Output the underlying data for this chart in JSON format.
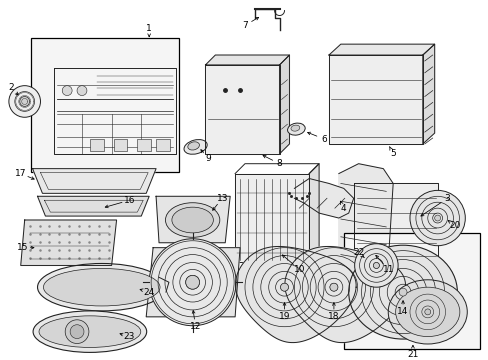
{
  "bg_color": "#ffffff",
  "lc": "#222222",
  "fig_width": 4.89,
  "fig_height": 3.6,
  "dpi": 100
}
